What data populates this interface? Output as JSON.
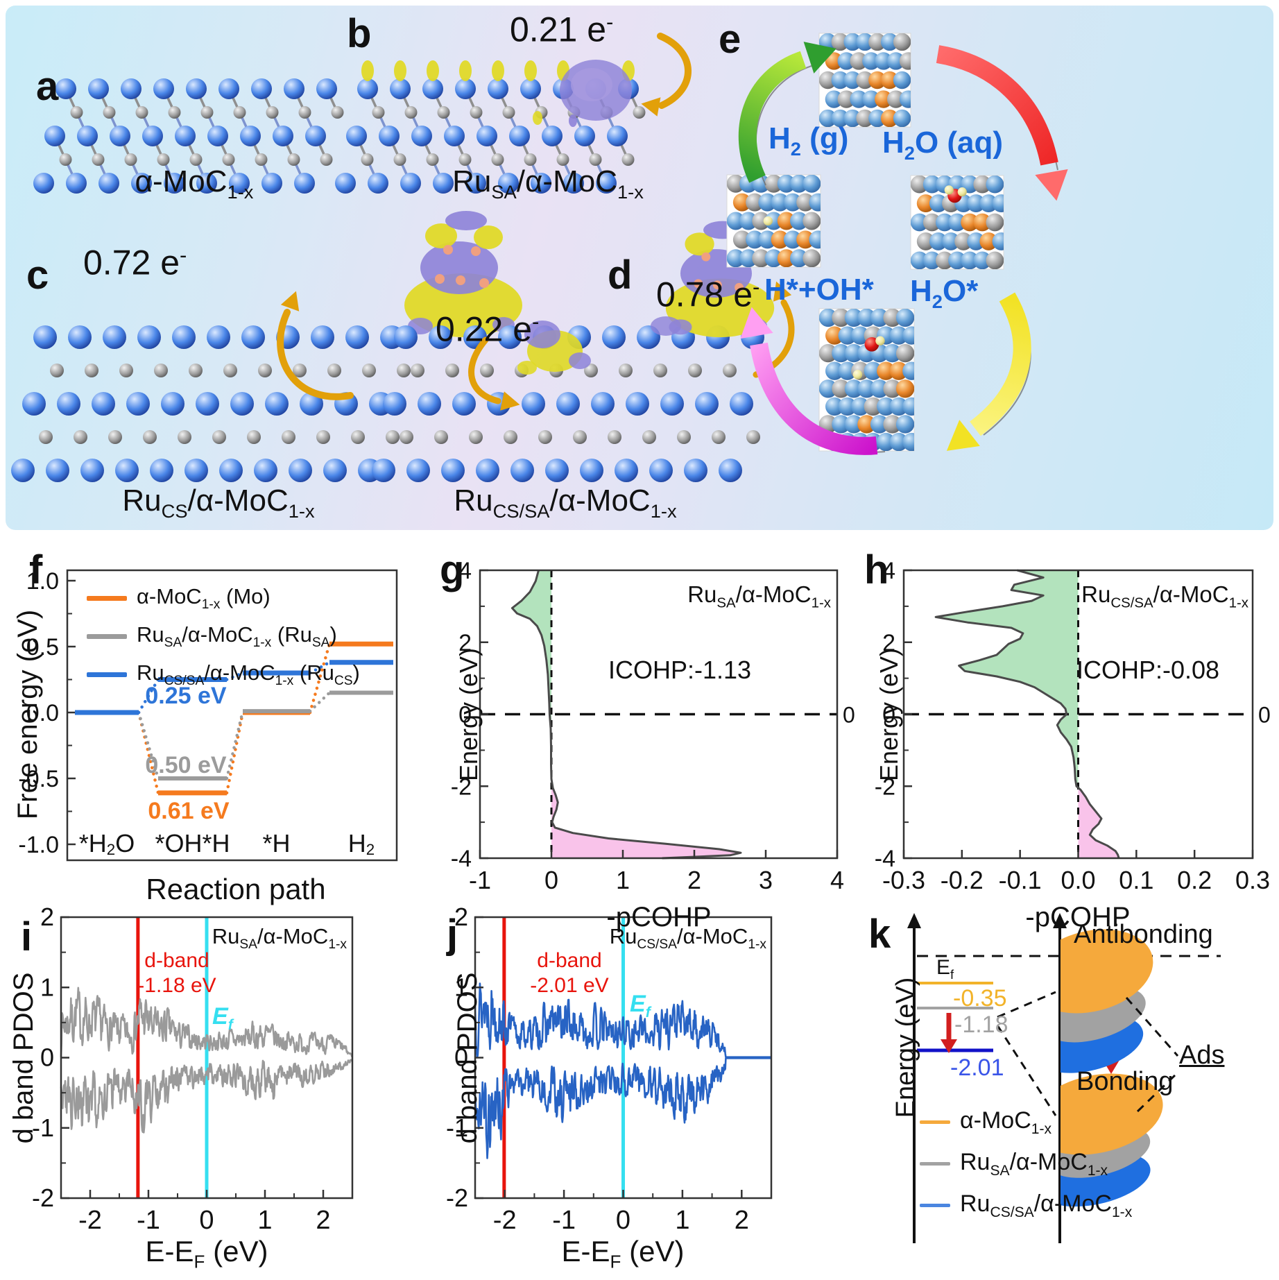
{
  "colors": {
    "mo_atom": "#2f6fe0",
    "c_atom": "#9a9a9a",
    "ru_atom": "#e8862a",
    "isosurface_yellow": "#e6df2e",
    "isosurface_purple": "#8d82d8",
    "arrow_orange": "#e2a00a",
    "cycle_blue_text": "#1a66d9",
    "green_fill": "#b3e3bd",
    "pink_fill": "#f9c3ea",
    "dband_red": "#e8140c",
    "fermi_cyan": "#35dff0"
  },
  "panels": {
    "a": {
      "letter": "a",
      "caption": "α-MoC_{1-x}"
    },
    "b": {
      "letter": "b",
      "caption": "Ru_{SA}/α-MoC_{1-x}",
      "charge": "0.21 e^{-}"
    },
    "c": {
      "letter": "c",
      "caption": "Ru_{CS}/α-MoC_{1-x}",
      "charge": "0.72 e^{-}"
    },
    "d": {
      "letter": "d",
      "caption": "Ru_{CS/SA}/α-MoC_{1-x}",
      "charge_left": "0.22 e^{-}",
      "charge_right": "0.78 e^{-}"
    },
    "e": {
      "letter": "e",
      "cycle_labels": {
        "h2_g": "H_{2} (g)",
        "h2o_aq": "H_{2}O (aq)",
        "h2o_star": "H_{2}O*",
        "h_oh_star": "H*+OH*"
      }
    },
    "f": {
      "letter": "f"
    },
    "g": {
      "letter": "g"
    },
    "h": {
      "letter": "h"
    },
    "i": {
      "letter": "i"
    },
    "j": {
      "letter": "j"
    },
    "k": {
      "letter": "k"
    }
  },
  "chart_data": [
    {
      "id": "f",
      "type": "line",
      "subtype": "free-energy-steps",
      "xlabel": "Reaction path",
      "ylabel": "Free energy (eV)",
      "categories": [
        "*H_{2}O",
        "*OH*H",
        "*H",
        "H_{2}"
      ],
      "ylim": [
        -1.14,
        1.08
      ],
      "yticks": [
        {
          "v": 1.0,
          "label": "1.0"
        },
        {
          "v": 0.5,
          "label": "0.5"
        },
        {
          "v": 0.0,
          "label": "0.0"
        },
        {
          "v": -0.5,
          "label": "-0.5"
        },
        {
          "v": -1.0,
          "label": "-1.0"
        }
      ],
      "series": [
        {
          "name": "α-MoC_{1-x} (Mo)",
          "color": "#f57a1e",
          "values": [
            0.0,
            -0.61,
            0.0,
            0.52
          ]
        },
        {
          "name": "Ru_{SA}/α-MoC_{1-x} (Ru_{SA})",
          "color": "#9b9b9b",
          "values": [
            0.0,
            -0.5,
            0.01,
            0.15
          ]
        },
        {
          "name": "Ru_{CS/SA}/α-MoC_{1-x} (Ru_{CS})",
          "color": "#2e75d8",
          "values": [
            0.0,
            0.25,
            0.3,
            0.38
          ]
        }
      ],
      "annotations": [
        {
          "text": "0.25 eV",
          "color": "#2e75d8"
        },
        {
          "text": "0.50 eV",
          "color": "#9b9b9b"
        },
        {
          "text": "0.61 eV",
          "color": "#f57a1e"
        }
      ]
    },
    {
      "id": "g",
      "type": "area",
      "subtype": "cohp",
      "title": "Ru_{SA}/α-MoC_{1-x}",
      "note": "ICOHP:-1.13",
      "xlabel": "-pCOHP",
      "ylabel": "Energy (eV)",
      "right_zero_label": "0",
      "xlim": [
        -1,
        4
      ],
      "ylim": [
        -4,
        4
      ],
      "xticks": [
        {
          "v": -1,
          "label": "-1"
        },
        {
          "v": 0,
          "label": "0"
        },
        {
          "v": 1,
          "label": "1"
        },
        {
          "v": 2,
          "label": "2"
        },
        {
          "v": 3,
          "label": "3"
        },
        {
          "v": 4,
          "label": "4"
        }
      ],
      "yticks": [
        {
          "v": 4,
          "label": "4"
        },
        {
          "v": 2,
          "label": "2"
        },
        {
          "v": 0,
          "label": "0"
        },
        {
          "v": -2,
          "label": "-2"
        },
        {
          "v": -4,
          "label": "-4"
        }
      ],
      "pos_color": "#f9c3ea",
      "neg_color": "#b3e3bd",
      "points": [
        [
          4,
          -0.18
        ],
        [
          3.7,
          -0.22
        ],
        [
          3.4,
          -0.3
        ],
        [
          3.15,
          -0.42
        ],
        [
          2.95,
          -0.55
        ],
        [
          2.8,
          -0.48
        ],
        [
          2.65,
          -0.3
        ],
        [
          2.45,
          -0.2
        ],
        [
          2.2,
          -0.14
        ],
        [
          1.9,
          -0.1
        ],
        [
          1.5,
          -0.07
        ],
        [
          1.1,
          -0.05
        ],
        [
          0.7,
          -0.04
        ],
        [
          0.3,
          -0.03
        ],
        [
          0.0,
          -0.025
        ],
        [
          -0.4,
          -0.01
        ],
        [
          -0.9,
          -0.005
        ],
        [
          -1.4,
          -0.005
        ],
        [
          -1.8,
          0.0
        ],
        [
          -2.05,
          0.02
        ],
        [
          -2.25,
          0.06
        ],
        [
          -2.45,
          0.09
        ],
        [
          -2.65,
          0.07
        ],
        [
          -2.85,
          0.03
        ],
        [
          -3.0,
          0.01
        ],
        [
          -3.15,
          0.05
        ],
        [
          -3.3,
          0.3
        ],
        [
          -3.45,
          0.8
        ],
        [
          -3.6,
          1.6
        ],
        [
          -3.75,
          2.35
        ],
        [
          -3.85,
          2.65
        ],
        [
          -3.92,
          2.5
        ],
        [
          -4,
          1.55
        ]
      ]
    },
    {
      "id": "h",
      "type": "area",
      "subtype": "cohp",
      "title": "Ru_{CS/SA}/α-MoC_{1-x}",
      "note": "ICOHP:-0.08",
      "xlabel": "-pCOHP",
      "ylabel": "Energy (eV)",
      "right_zero_label": "0",
      "xlim": [
        -0.3,
        0.3
      ],
      "ylim": [
        -4,
        4
      ],
      "xticks": [
        {
          "v": -0.3,
          "label": "-0.3"
        },
        {
          "v": -0.2,
          "label": "-0.2"
        },
        {
          "v": -0.1,
          "label": "-0.1"
        },
        {
          "v": 0.0,
          "label": "0.0"
        },
        {
          "v": 0.1,
          "label": "0.1"
        },
        {
          "v": 0.2,
          "label": "0.2"
        },
        {
          "v": 0.3,
          "label": "0.3"
        }
      ],
      "yticks": [
        {
          "v": 4,
          "label": "4"
        },
        {
          "v": 2,
          "label": "2"
        },
        {
          "v": 0,
          "label": "0"
        },
        {
          "v": -2,
          "label": "-2"
        },
        {
          "v": -4,
          "label": "-4"
        }
      ],
      "pos_color": "#f9c3ea",
      "neg_color": "#b3e3bd",
      "points": [
        [
          4,
          -0.105
        ],
        [
          3.8,
          -0.06
        ],
        [
          3.6,
          -0.11
        ],
        [
          3.45,
          -0.115
        ],
        [
          3.3,
          -0.06
        ],
        [
          3.15,
          -0.08
        ],
        [
          3.0,
          -0.13
        ],
        [
          2.85,
          -0.19
        ],
        [
          2.7,
          -0.245
        ],
        [
          2.55,
          -0.19
        ],
        [
          2.4,
          -0.115
        ],
        [
          2.25,
          -0.095
        ],
        [
          2.1,
          -0.1
        ],
        [
          1.95,
          -0.12
        ],
        [
          1.8,
          -0.13
        ],
        [
          1.65,
          -0.14
        ],
        [
          1.5,
          -0.17
        ],
        [
          1.35,
          -0.205
        ],
        [
          1.2,
          -0.195
        ],
        [
          1.05,
          -0.14
        ],
        [
          0.9,
          -0.1
        ],
        [
          0.75,
          -0.075
        ],
        [
          0.6,
          -0.06
        ],
        [
          0.45,
          -0.045
        ],
        [
          0.3,
          -0.03
        ],
        [
          0.15,
          -0.022
        ],
        [
          0.0,
          -0.02
        ],
        [
          -0.15,
          -0.03
        ],
        [
          -0.3,
          -0.036
        ],
        [
          -0.5,
          -0.03
        ],
        [
          -0.7,
          -0.02
        ],
        [
          -0.9,
          -0.012
        ],
        [
          -1.2,
          -0.008
        ],
        [
          -1.5,
          -0.006
        ],
        [
          -1.8,
          -0.005
        ],
        [
          -2.0,
          -0.003
        ],
        [
          -2.1,
          0.004
        ],
        [
          -2.3,
          0.013
        ],
        [
          -2.5,
          0.02
        ],
        [
          -2.7,
          0.03
        ],
        [
          -2.9,
          0.04
        ],
        [
          -3.05,
          0.035
        ],
        [
          -3.2,
          0.025
        ],
        [
          -3.35,
          0.02
        ],
        [
          -3.5,
          0.03
        ],
        [
          -3.65,
          0.05
        ],
        [
          -3.8,
          0.064
        ],
        [
          -3.9,
          0.068
        ],
        [
          -4,
          0.07
        ]
      ]
    },
    {
      "id": "i",
      "type": "line",
      "subtype": "pdos",
      "title": "Ru_{SA}/α-MoC_{1-x}",
      "dband": {
        "label_line1": "d-band",
        "label_line2": "-1.18 eV",
        "value": -1.18,
        "color": "#e8140c"
      },
      "ef": {
        "label": "E_{f}",
        "value": 0,
        "color": "#35dff0"
      },
      "xlabel": "E-E_{F} (eV)",
      "ylabel": "d band PDOS",
      "xlim": [
        -2.5,
        2.5
      ],
      "ylim": [
        -2,
        2
      ],
      "xticks": [
        {
          "v": -2,
          "label": "-2"
        },
        {
          "v": -1,
          "label": "-1"
        },
        {
          "v": 0,
          "label": "0"
        },
        {
          "v": 1,
          "label": "1"
        },
        {
          "v": 2,
          "label": "2"
        }
      ],
      "yticks": [
        {
          "v": 2,
          "label": "2"
        },
        {
          "v": 1,
          "label": "1"
        },
        {
          "v": 0,
          "label": "0"
        },
        {
          "v": -1,
          "label": "-1"
        },
        {
          "v": -2,
          "label": "-2"
        }
      ],
      "color": "#9a9a9a",
      "seed": 7,
      "flat_after": null,
      "envelope": [
        [
          -2.5,
          0.72,
          0.8
        ],
        [
          -2.3,
          0.98,
          1.02
        ],
        [
          -2.1,
          0.88,
          1.08
        ],
        [
          -1.9,
          0.8,
          0.92
        ],
        [
          -1.6,
          0.62,
          0.75
        ],
        [
          -1.35,
          0.56,
          0.6
        ],
        [
          -1.1,
          0.95,
          1.05
        ],
        [
          -0.9,
          0.66,
          0.8
        ],
        [
          -0.7,
          0.7,
          0.72
        ],
        [
          -0.5,
          0.52,
          0.56
        ],
        [
          -0.3,
          0.44,
          0.46
        ],
        [
          0.0,
          0.36,
          0.4
        ],
        [
          0.3,
          0.38,
          0.42
        ],
        [
          0.6,
          0.42,
          0.46
        ],
        [
          0.9,
          0.52,
          0.62
        ],
        [
          1.1,
          0.46,
          0.56
        ],
        [
          1.4,
          0.36,
          0.44
        ],
        [
          1.7,
          0.32,
          0.36
        ],
        [
          2.0,
          0.34,
          0.3
        ],
        [
          2.3,
          0.26,
          0.2
        ],
        [
          2.5,
          0.04,
          0.04
        ]
      ]
    },
    {
      "id": "j",
      "type": "line",
      "subtype": "pdos",
      "title": "Ru_{CS/SA}/α-MoC_{1-x}",
      "dband": {
        "label_line1": "d-band",
        "label_line2": "-2.01 eV",
        "value": -2.01,
        "color": "#e8140c"
      },
      "ef": {
        "label": "E_{f}",
        "value": 0,
        "color": "#35dff0"
      },
      "xlabel": "E-E_{F} (eV)",
      "ylabel": "d band PDOS",
      "xlim": [
        -2.5,
        2.5
      ],
      "ylim": [
        -2,
        2
      ],
      "xticks": [
        {
          "v": -2,
          "label": "-2"
        },
        {
          "v": -1,
          "label": "-1"
        },
        {
          "v": 0,
          "label": "0"
        },
        {
          "v": 1,
          "label": "1"
        },
        {
          "v": 2,
          "label": "2"
        }
      ],
      "yticks": [
        {
          "v": 2,
          "label": "2"
        },
        {
          "v": 1,
          "label": "1"
        },
        {
          "v": 0,
          "label": "0"
        },
        {
          "v": -1,
          "label": "-1"
        },
        {
          "v": -2,
          "label": "-2"
        }
      ],
      "color": "#2763c4",
      "seed": 13,
      "flat_after": 1.73,
      "envelope": [
        [
          -2.5,
          1.05,
          0.95
        ],
        [
          -2.35,
          1.2,
          1.1
        ],
        [
          -2.15,
          1.15,
          1.6
        ],
        [
          -2.0,
          0.72,
          0.78
        ],
        [
          -1.8,
          0.52,
          0.62
        ],
        [
          -1.5,
          0.56,
          0.66
        ],
        [
          -1.2,
          0.78,
          0.82
        ],
        [
          -0.95,
          0.82,
          0.92
        ],
        [
          -0.7,
          0.62,
          0.72
        ],
        [
          -0.4,
          0.66,
          0.62
        ],
        [
          -0.1,
          0.56,
          0.52
        ],
        [
          0.1,
          0.62,
          0.56
        ],
        [
          0.4,
          0.56,
          0.66
        ],
        [
          0.7,
          0.82,
          0.78
        ],
        [
          0.95,
          0.78,
          0.92
        ],
        [
          1.2,
          0.72,
          0.82
        ],
        [
          1.45,
          0.56,
          0.62
        ],
        [
          1.6,
          0.42,
          0.46
        ],
        [
          1.72,
          0.18,
          0.22
        ],
        [
          1.76,
          0.01,
          0.01
        ],
        [
          2.5,
          0.01,
          0.01
        ]
      ]
    },
    {
      "id": "k",
      "type": "diagram",
      "subtype": "d-band-center-scheme",
      "ef_label": "E_{f}",
      "ylabel": "Energy (eV)",
      "antibonding_label": "Antibonding",
      "bonding_label": "Bonding",
      "ads_label": "Ads",
      "levels": [
        {
          "name": "α-MoC_{1-x}",
          "energy": -0.35,
          "energy_label": "-0.35",
          "line_color": "#f2b32a",
          "label_color": "#f2b32a",
          "lobe_color": "#f5a93c",
          "legend_color": "#f5a93c"
        },
        {
          "name": "Ru_{SA}/α-MoC_{1-x}",
          "energy": -1.18,
          "energy_label": "-1.18",
          "line_color": "#a2a2a2",
          "label_color": "#a2a2a2",
          "lobe_color": "#a2a2a2",
          "legend_color": "#a2a2a2"
        },
        {
          "name": "Ru_{CS/SA}/α-MoC_{1-x}",
          "energy": -2.01,
          "energy_label": "-2.01",
          "line_color": "#1212c8",
          "label_color": "#3a55e8",
          "lobe_color": "#1f6fe0",
          "legend_color": "#4a86e0"
        }
      ]
    }
  ]
}
